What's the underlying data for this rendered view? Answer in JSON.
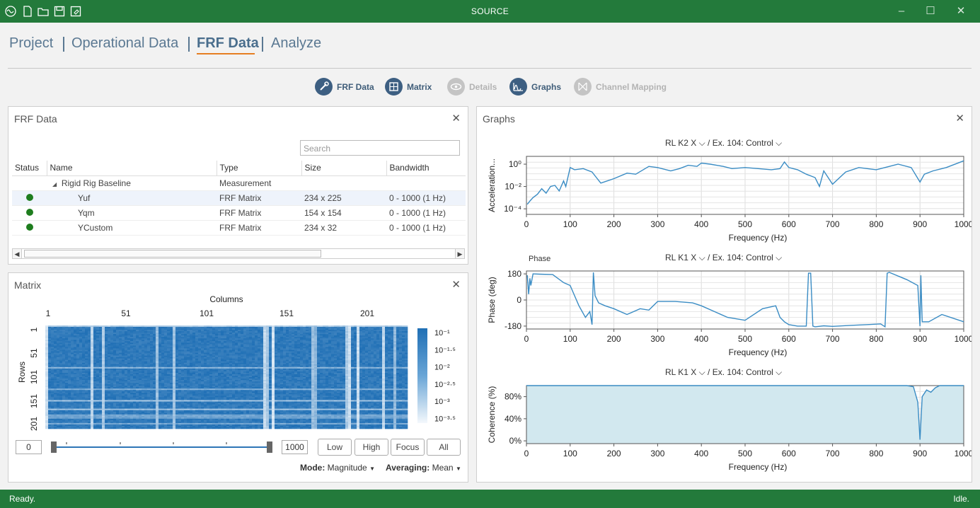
{
  "app": {
    "title": "SOURCE"
  },
  "nav": {
    "tabs": [
      {
        "label": "Project"
      },
      {
        "label": "Operational Data"
      },
      {
        "label": "FRF Data"
      },
      {
        "label": "Analyze"
      }
    ]
  },
  "toolbar": {
    "frf_data": "FRF Data",
    "matrix": "Matrix",
    "details": "Details",
    "graphs": "Graphs",
    "channel_mapping": "Channel Mapping"
  },
  "frf_panel": {
    "title": "FRF Data",
    "search_placeholder": "Search",
    "columns": [
      "Status",
      "Name",
      "Type",
      "Size",
      "Bandwidth"
    ],
    "group": {
      "name": "Rigid Rig Baseline",
      "type": "Measurement"
    },
    "rows": [
      {
        "name": "Yuf",
        "type": "FRF Matrix",
        "size": "234 x 225",
        "bandwidth": "0 - 1000 (1 Hz)"
      },
      {
        "name": "Yqm",
        "type": "FRF Matrix",
        "size": "154 x 154",
        "bandwidth": "0 - 1000 (1 Hz)"
      },
      {
        "name": "YCustom",
        "type": "FRF Matrix",
        "size": "234 x 32",
        "bandwidth": "0 - 1000 (1 Hz)"
      }
    ]
  },
  "matrix_panel": {
    "title": "Matrix",
    "columns_label": "Columns",
    "rows_label": "Rows",
    "col_ticks": [
      "1",
      "51",
      "101",
      "151",
      "201"
    ],
    "row_ticks": [
      "1",
      "51",
      "101",
      "151",
      "201"
    ],
    "colorbar_ticks": [
      "10⁻¹",
      "10⁻¹·⁵",
      "10⁻²",
      "10⁻²·⁵",
      "10⁻³",
      "10⁻³·⁵"
    ],
    "range_min": "0",
    "range_max": "1000",
    "range_value": [
      0,
      1000
    ],
    "buttons": {
      "low": "Low",
      "high": "High",
      "focus": "Focus",
      "all": "All"
    },
    "mode_label": "Mode:",
    "mode_value": "Magnitude",
    "averaging_label": "Averaging:",
    "averaging_value": "Mean"
  },
  "graphs_panel": {
    "title": "Graphs",
    "graph1": {
      "channel": "RL K2 X",
      "excitation": "Ex. 104: Control"
    },
    "graph2": {
      "channel": "RL K1 X",
      "excitation": "Ex. 104: Control",
      "subtitle": "Phase"
    },
    "graph3": {
      "channel": "RL K1 X",
      "excitation": "Ex. 104: Control"
    },
    "sep": "/"
  },
  "chart_data": [
    {
      "type": "line",
      "xlabel": "Frequency (Hz)",
      "ylabel": "Acceleration...",
      "xlim": [
        0,
        1000
      ],
      "xticks": [
        0,
        100,
        200,
        300,
        400,
        500,
        600,
        700,
        800,
        900,
        1000
      ],
      "yscale": "log",
      "yticks": [
        "10⁰",
        "10⁻²",
        "10⁻⁴"
      ],
      "ylim_log10": [
        -4.5,
        0.7
      ],
      "color": "#3a8cc4",
      "x": [
        2,
        8,
        15,
        25,
        35,
        45,
        55,
        65,
        75,
        85,
        90,
        100,
        110,
        130,
        150,
        160,
        170,
        200,
        230,
        250,
        280,
        300,
        330,
        350,
        370,
        390,
        400,
        420,
        450,
        470,
        500,
        530,
        560,
        580,
        590,
        600,
        620,
        640,
        660,
        670,
        680,
        700,
        730,
        760,
        800,
        830,
        850,
        880,
        900,
        910,
        930,
        960,
        1000
      ],
      "y": [
        -3.6,
        -3.3,
        -3.0,
        -2.7,
        -2.2,
        -2.6,
        -2.0,
        -1.9,
        -2.4,
        -1.5,
        -2.0,
        -0.3,
        -0.5,
        -0.4,
        -0.7,
        -1.2,
        -1.7,
        -1.3,
        -0.8,
        -0.9,
        -0.2,
        -0.3,
        -0.6,
        -0.4,
        -0.1,
        -0.2,
        0.1,
        0.0,
        -0.2,
        -0.4,
        -0.3,
        -0.4,
        -0.5,
        -0.4,
        0.2,
        -0.3,
        -0.5,
        -0.9,
        -1.2,
        -2.0,
        -0.6,
        -1.8,
        -0.7,
        -0.3,
        -0.5,
        -0.2,
        0.0,
        -0.3,
        -1.6,
        -0.9,
        -0.6,
        -0.3,
        0.3
      ]
    },
    {
      "type": "line",
      "xlabel": "Frequency (Hz)",
      "ylabel": "Phase (deg)",
      "xlim": [
        0,
        1000
      ],
      "xticks": [
        0,
        100,
        200,
        300,
        400,
        500,
        600,
        700,
        800,
        900,
        1000
      ],
      "ylim": [
        -200,
        200
      ],
      "yticks": [
        180,
        0,
        -180
      ],
      "color": "#3a8cc4",
      "x": [
        2,
        5,
        8,
        10,
        15,
        30,
        60,
        85,
        100,
        110,
        120,
        135,
        145,
        150,
        153,
        157,
        165,
        180,
        200,
        230,
        260,
        280,
        300,
        340,
        380,
        400,
        430,
        460,
        500,
        540,
        570,
        580,
        590,
        600,
        620,
        640,
        645,
        650,
        655,
        660,
        680,
        700,
        740,
        780,
        810,
        820,
        825,
        830,
        870,
        895,
        900,
        902,
        905,
        920,
        950,
        1000
      ],
      "y": [
        170,
        40,
        150,
        100,
        180,
        178,
        175,
        120,
        100,
        30,
        -40,
        -120,
        -80,
        -170,
        190,
        30,
        -20,
        -40,
        -60,
        -100,
        -60,
        -70,
        -10,
        -10,
        -20,
        -40,
        -80,
        -120,
        -140,
        -60,
        -40,
        -120,
        -150,
        -170,
        -180,
        -180,
        185,
        185,
        -180,
        -185,
        -178,
        -182,
        -175,
        -170,
        -165,
        -185,
        185,
        190,
        140,
        100,
        -180,
        170,
        -150,
        -150,
        -100,
        -150
      ]
    },
    {
      "type": "area",
      "xlabel": "Frequency (Hz)",
      "ylabel": "Coherence (%)",
      "xlim": [
        0,
        1000
      ],
      "xticks": [
        0,
        100,
        200,
        300,
        400,
        500,
        600,
        700,
        800,
        900,
        1000
      ],
      "ylim": [
        -5,
        100
      ],
      "yticks": [
        "80%",
        "40%",
        "0%"
      ],
      "color": "#3a8cc4",
      "fill": "#d2e8ef",
      "x": [
        0,
        50,
        100,
        150,
        200,
        300,
        400,
        500,
        600,
        700,
        800,
        870,
        885,
        895,
        900,
        905,
        915,
        925,
        935,
        945,
        960,
        1000
      ],
      "y": [
        100,
        100,
        100,
        100,
        100,
        100,
        100,
        100,
        100,
        100,
        100,
        100,
        98,
        70,
        2,
        80,
        92,
        88,
        96,
        100,
        100,
        100
      ]
    }
  ]
}
